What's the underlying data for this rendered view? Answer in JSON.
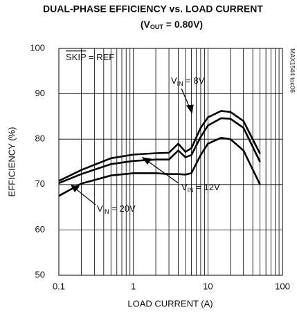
{
  "chart_data": {
    "type": "line",
    "title": "DUAL-PHASE EFFICIENCY  vs. LOAD CURRENT",
    "subtitle": [
      "(V",
      "OUT",
      " = 0.80V)"
    ],
    "x_label": "LOAD CURRENT (A)",
    "y_label": "EFFICIENCY (%)",
    "log_x": true,
    "grid": true,
    "x": [
      0.1,
      0.2,
      0.5,
      1,
      2,
      3,
      4,
      5,
      6,
      8,
      10,
      15,
      20,
      30,
      50
    ],
    "series": [
      {
        "name": "8V",
        "color": "#000000",
        "values": [
          70.8,
          73.2,
          75.8,
          76.6,
          76.9,
          77,
          79,
          77.2,
          78,
          82.5,
          84.8,
          86.2,
          86,
          84,
          76.8
        ]
      },
      {
        "name": "12V",
        "color": "#000000",
        "values": [
          70.3,
          72.3,
          74.5,
          75.2,
          75.5,
          75.5,
          77.5,
          76,
          76.5,
          80.5,
          83,
          84.6,
          84.5,
          82.5,
          75
        ]
      },
      {
        "name": "20V",
        "color": "#000000",
        "values": [
          67.5,
          70.2,
          72,
          72.5,
          72.5,
          72.3,
          72.3,
          72.2,
          72.5,
          76.5,
          79,
          80.3,
          80,
          77.5,
          70
        ]
      }
    ],
    "xlim": [
      0.1,
      100
    ],
    "ylim": [
      50,
      100
    ],
    "xticks": [
      0.1,
      1,
      10,
      100
    ],
    "yticks": [
      50,
      60,
      70,
      80,
      90,
      100
    ],
    "annotations": [
      {
        "text": "SKIP",
        "rest": " = REF"
      },
      {
        "text": "V",
        "sub": "IN",
        "rest": " = 8V"
      },
      {
        "text": "V",
        "sub": "IN",
        "rest": " = 12V"
      },
      {
        "text": "V",
        "sub": "IN",
        "rest": " = 20V"
      }
    ],
    "code": "MAX1544 toc06"
  }
}
